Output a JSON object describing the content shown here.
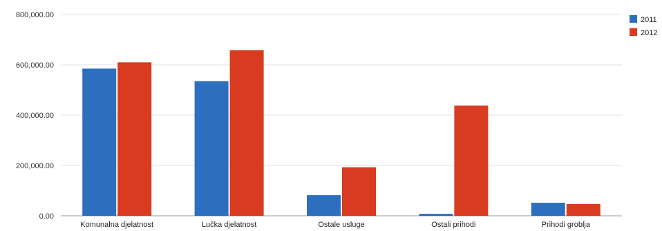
{
  "chart_data": {
    "type": "bar",
    "title": "",
    "xlabel": "",
    "ylabel": "",
    "categories": [
      "Komunalna djelatnost",
      "Lučka djelatnost",
      "Ostale usluge",
      "Ostali prihodi",
      "Prihodi groblja"
    ],
    "series": [
      {
        "name": "2011",
        "color": "#2d6fbf",
        "values": [
          585000,
          535000,
          82000,
          8000,
          52000
        ]
      },
      {
        "name": "2012",
        "color": "#d83b1f",
        "values": [
          610000,
          658000,
          193000,
          438000,
          47000
        ]
      }
    ],
    "ylim": [
      0,
      800000
    ],
    "yticks": [
      {
        "value": 0,
        "label": "0.00"
      },
      {
        "value": 200000,
        "label": "200,000.00"
      },
      {
        "value": 400000,
        "label": "400,000.00"
      },
      {
        "value": 600000,
        "label": "600,000.00"
      },
      {
        "value": 800000,
        "label": "800,000.00"
      }
    ],
    "grid": true,
    "legend_position": "top-right"
  }
}
